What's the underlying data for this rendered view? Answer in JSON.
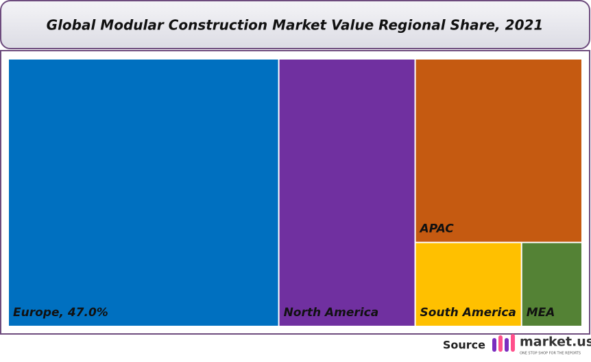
{
  "chart_data": {
    "type": "treemap",
    "title": "Global Modular Construction Market Value Regional Share, 2021",
    "labels": [
      "Europe, 47.0%",
      "North America",
      "APAC",
      "South America",
      "MEA"
    ],
    "values": [
      47.0,
      23.7,
      19.9,
      5.8,
      3.3
    ],
    "colors": [
      "#0070c0",
      "#7030a0",
      "#c55a11",
      "#ffc000",
      "#548235"
    ]
  },
  "source": {
    "label": "Source",
    "brand": "market.us",
    "tagline": "ONE STOP SHOP FOR THE REPORTS"
  }
}
